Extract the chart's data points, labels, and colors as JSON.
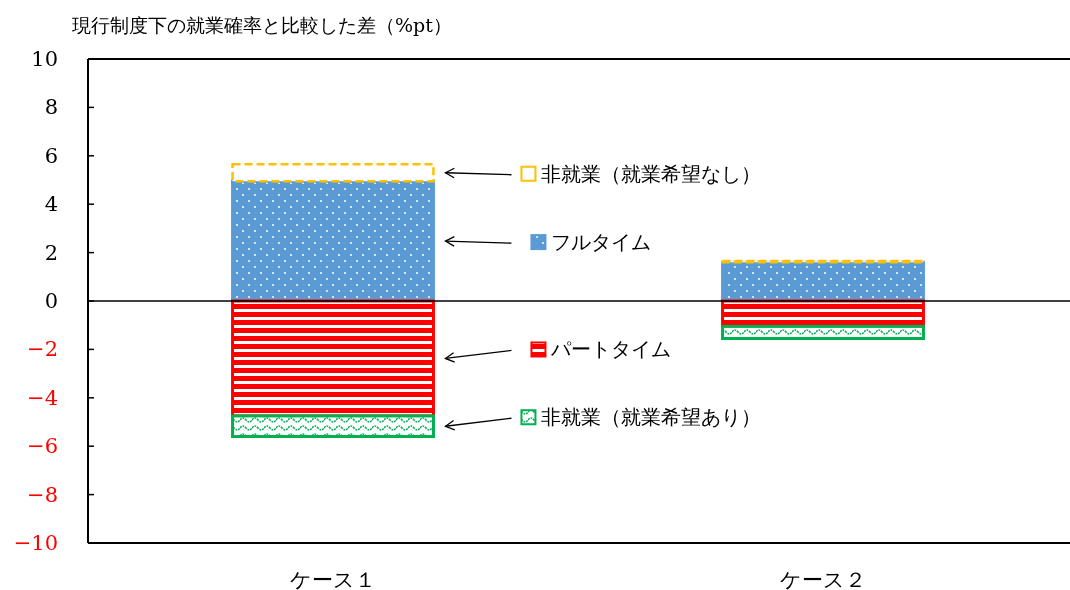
{
  "chart_data": {
    "type": "bar",
    "stacked": true,
    "ylabel": "現行制度下の就業確率と比較した差（%pt）",
    "categories": [
      "ケース１",
      "ケース２"
    ],
    "series": [
      {
        "name": "フルタイム",
        "color": "#5b9bd5",
        "values": [
          4.95,
          1.6
        ]
      },
      {
        "name": "非就業（就業希望なし）",
        "color": "#ffc000",
        "values": [
          0.7,
          0.05
        ]
      },
      {
        "name": "パートタイム",
        "color": "#ff0000",
        "values": [
          -4.75,
          -1.05
        ]
      },
      {
        "name": "非就業（就業希望あり）",
        "color": "#00b050",
        "values": [
          -0.85,
          -0.5
        ]
      }
    ],
    "ylim": [
      -10,
      10
    ],
    "yticks": [
      -10,
      -8,
      -6,
      -4,
      -2,
      0,
      2,
      4,
      6,
      8,
      10
    ],
    "ref_lines": [
      {
        "axis": "y",
        "value": 0
      }
    ],
    "grid": false,
    "legend": "center"
  }
}
